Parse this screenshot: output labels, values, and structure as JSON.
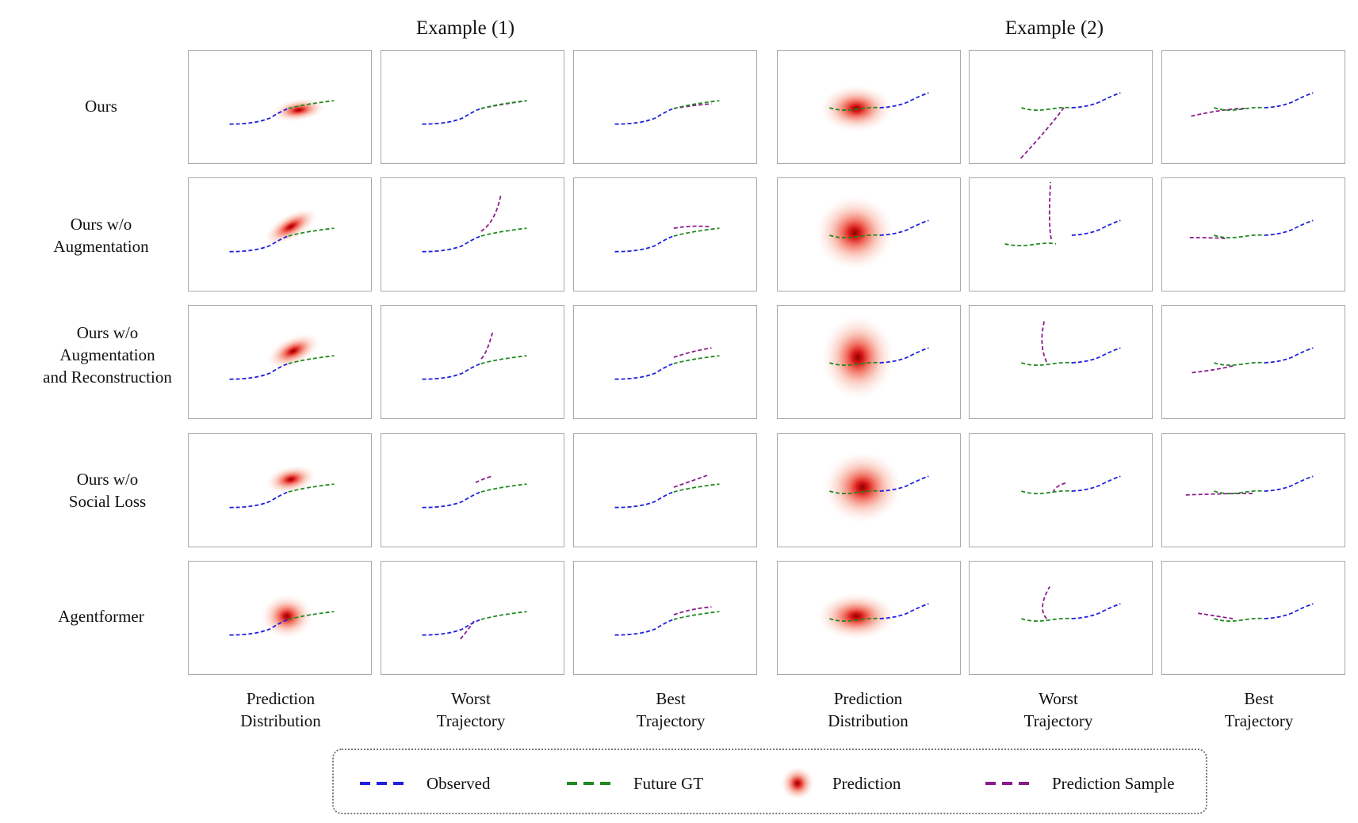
{
  "examples": [
    "Example (1)",
    "Example (2)"
  ],
  "rows": [
    {
      "key": "ours",
      "label_lines": [
        "Ours"
      ]
    },
    {
      "key": "no_aug",
      "label_lines": [
        "Ours w/o",
        "Augmentation"
      ]
    },
    {
      "key": "no_aug_rec",
      "label_lines": [
        "Ours w/o",
        "Augmentation",
        "and Reconstruction"
      ]
    },
    {
      "key": "no_social",
      "label_lines": [
        "Ours w/o",
        "Social Loss"
      ]
    },
    {
      "key": "agentformer",
      "label_lines": [
        "Agentformer"
      ]
    }
  ],
  "columns": [
    {
      "label_lines": [
        "Prediction",
        "Distribution"
      ]
    },
    {
      "label_lines": [
        "Worst",
        "Trajectory"
      ]
    },
    {
      "label_lines": [
        "Best",
        "Trajectory"
      ]
    },
    {
      "label_lines": [
        "Prediction",
        "Distribution"
      ]
    },
    {
      "label_lines": [
        "Worst",
        "Trajectory"
      ]
    },
    {
      "label_lines": [
        "Best",
        "Trajectory"
      ]
    }
  ],
  "legend": {
    "observed": "Observed",
    "future_gt": "Future GT",
    "prediction": "Prediction",
    "prediction_sample": "Prediction Sample"
  },
  "colors": {
    "observed": "#1f1fe0",
    "future_gt": "#1f8a1f",
    "prediction_sample": "#8b1a8b",
    "heat": "#d42020",
    "panel_border": "#a9a9a9"
  }
}
